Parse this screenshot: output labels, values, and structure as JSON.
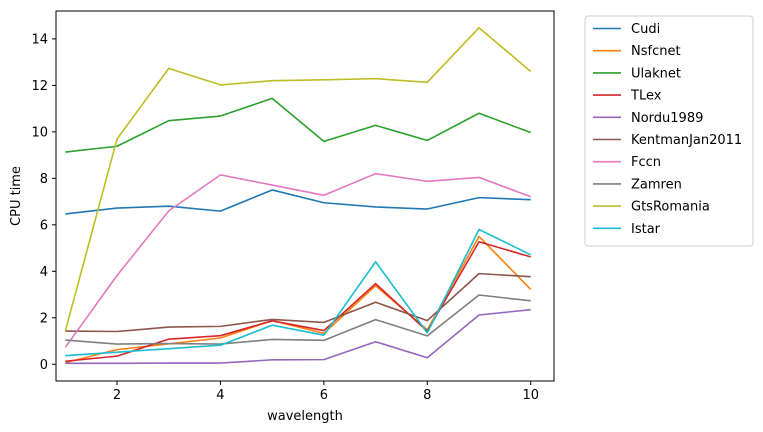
{
  "chart_data": {
    "type": "line",
    "title": "",
    "xlabel": "wavelength",
    "ylabel": "CPU time",
    "xlim": [
      0.82,
      10.45
    ],
    "ylim": [
      -0.72,
      15.2
    ],
    "xticks": [
      2,
      4,
      6,
      8,
      10
    ],
    "yticks": [
      0,
      2,
      4,
      6,
      8,
      10,
      12,
      14
    ],
    "grid": false,
    "legend_position": "outside-right",
    "x": [
      1,
      2,
      3,
      4,
      5,
      6,
      7,
      8,
      9,
      10
    ],
    "series": [
      {
        "name": "Cudi",
        "color": "#1f77b4",
        "values": [
          6.47,
          6.72,
          6.8,
          6.59,
          7.5,
          6.95,
          6.77,
          6.68,
          7.17,
          7.08
        ]
      },
      {
        "name": "Nsfcnet",
        "color": "#ff7f0e",
        "values": [
          0.07,
          0.63,
          0.88,
          1.13,
          1.88,
          1.33,
          3.38,
          1.48,
          5.5,
          3.22
        ]
      },
      {
        "name": "Ulaknet",
        "color": "#2ca02c",
        "values": [
          9.13,
          9.38,
          10.48,
          10.68,
          11.44,
          9.59,
          10.28,
          9.63,
          10.8,
          9.97
        ]
      },
      {
        "name": "TLex",
        "color": "#d62728",
        "values": [
          0.13,
          0.35,
          1.08,
          1.23,
          1.87,
          1.45,
          3.47,
          1.42,
          5.27,
          4.62
        ]
      },
      {
        "name": "Nordu1989",
        "color": "#9467bd",
        "values": [
          0.04,
          0.04,
          0.05,
          0.05,
          0.19,
          0.2,
          0.97,
          0.28,
          2.12,
          2.35
        ]
      },
      {
        "name": "KentmanJan2011",
        "color": "#8c564b",
        "values": [
          1.43,
          1.41,
          1.6,
          1.63,
          1.93,
          1.8,
          2.67,
          1.88,
          3.9,
          3.77
        ]
      },
      {
        "name": "Fccn",
        "color": "#e377c2",
        "values": [
          0.73,
          3.82,
          6.6,
          8.15,
          7.71,
          7.27,
          8.2,
          7.87,
          8.04,
          7.21
        ]
      },
      {
        "name": "Zamren",
        "color": "#7f7f7f",
        "values": [
          1.04,
          0.87,
          0.89,
          0.87,
          1.07,
          1.03,
          1.92,
          1.22,
          2.98,
          2.73
        ]
      },
      {
        "name": "GtsRomania",
        "color": "#bcbd22",
        "values": [
          1.43,
          9.69,
          12.73,
          12.02,
          12.2,
          12.24,
          12.29,
          12.13,
          14.48,
          12.6
        ]
      },
      {
        "name": "Istar",
        "color": "#17becf",
        "values": [
          0.37,
          0.52,
          0.67,
          0.82,
          1.68,
          1.25,
          4.41,
          1.35,
          5.8,
          4.71
        ]
      }
    ]
  }
}
